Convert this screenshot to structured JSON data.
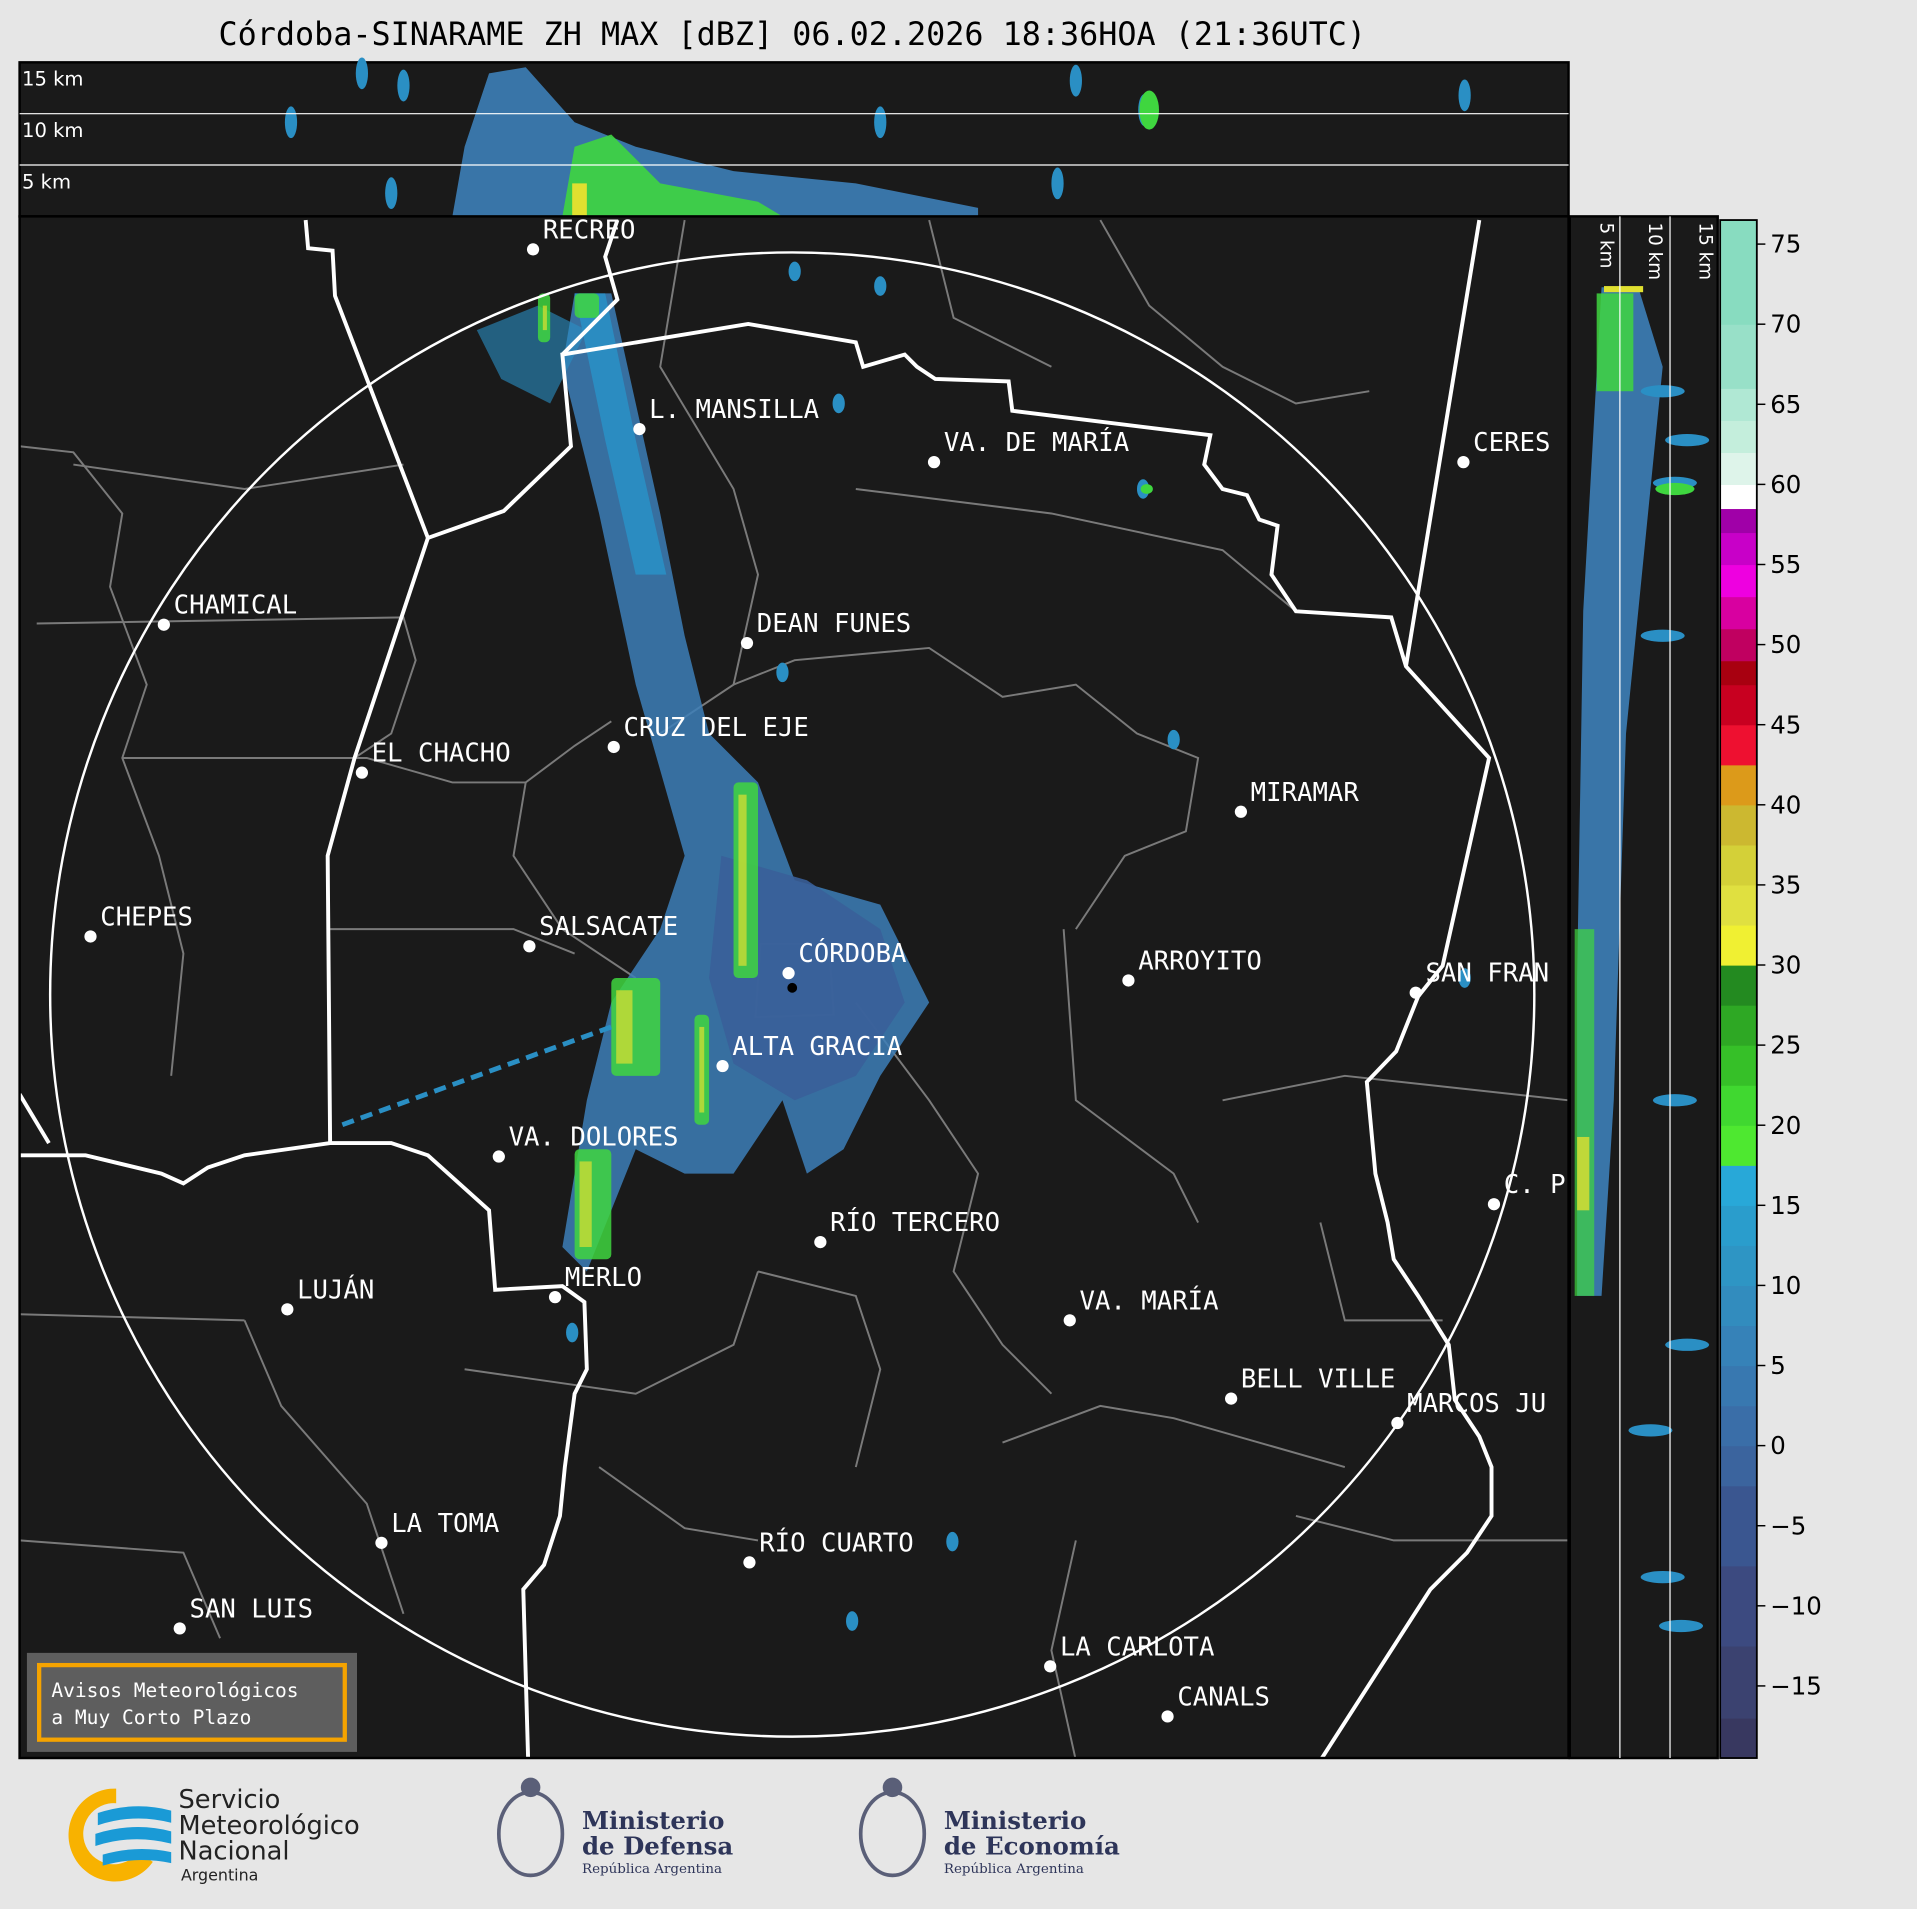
{
  "title": "Córdoba-SINARAME ZH MAX [dBZ] 06.02.2026 18:36HOA (21:36UTC)",
  "top_panel": {
    "height_labels": [
      "15 km",
      "10 km",
      "5 km"
    ]
  },
  "right_panel": {
    "height_labels": [
      "5 km",
      "10 km",
      "15 km"
    ]
  },
  "map": {
    "cities": [
      "RECREO",
      "L. MANSILLA",
      "VA. DE MARÍA",
      "CERES",
      "CHAMICAL",
      "DEAN FUNES",
      "CRUZ DEL EJE",
      "EL CHACHO",
      "MIRAMAR",
      "CHEPES",
      "SALSACATE",
      "CÓRDOBA",
      "ARROYITO",
      "SAN FRAN",
      "ALTA GRACIA",
      "VA. DOLORES",
      "C. P",
      "RÍO TERCERO",
      "LUJÁN",
      "MERLO",
      "VA. MARÍA",
      "BELL VILLE",
      "MARCOS JU",
      "LA TOMA",
      "RÍO CUARTO",
      "SAN LUIS",
      "LA CARLOTA",
      "CANALS"
    ],
    "background_color": "#1a1a1a",
    "range_ring_color": "#ffffff"
  },
  "warning_box": {
    "line1": "Avisos Meteorológicos",
    "line2": "a Muy Corto Plazo",
    "border_color": "#f5a300"
  },
  "colorbar": {
    "unit": "dBZ",
    "range": [
      -19.5,
      76.5
    ],
    "ticks": [
      "75",
      "70",
      "65",
      "60",
      "55",
      "50",
      "45",
      "40",
      "35",
      "30",
      "25",
      "20",
      "15",
      "10",
      "5",
      "0",
      "−5",
      "−10",
      "−15"
    ]
  },
  "logos": {
    "smn": {
      "line1": "Servicio",
      "line2": "Meteorológico",
      "line3": "Nacional",
      "line4": "Argentina"
    },
    "defensa": {
      "line1": "Ministerio",
      "line2": "de Defensa",
      "line3": "República Argentina"
    },
    "economia": {
      "line1": "Ministerio",
      "line2": "de Economía",
      "line3": "República Argentina"
    }
  }
}
